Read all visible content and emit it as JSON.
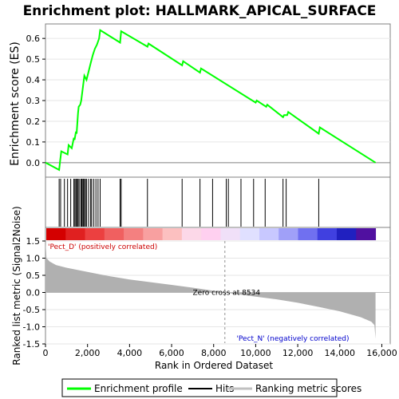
{
  "chart_data": [
    {
      "type": "line",
      "title": "Enrichment plot: HALLMARK_APICAL_SURFACE",
      "ylabel": "Enrichment score (ES)",
      "ylim": [
        -0.07,
        0.67
      ],
      "yticks": [
        "0.0",
        "0.1",
        "0.2",
        "0.3",
        "0.4",
        "0.5",
        "0.6"
      ],
      "ytick_values": [
        0.0,
        0.1,
        0.2,
        0.3,
        0.4,
        0.5,
        0.6
      ],
      "xlim": [
        0,
        16400
      ],
      "grid": true,
      "series": [
        {
          "name": "Enrichment profile",
          "color": "#00ff00",
          "x": [
            0,
            650,
            700,
            750,
            1050,
            1100,
            1250,
            1350,
            1380,
            1450,
            1480,
            1550,
            1580,
            1650,
            1700,
            1750,
            1800,
            1850,
            1950,
            2050,
            2150,
            2250,
            2350,
            2450,
            2550,
            2600,
            3550,
            3600,
            4850,
            4900,
            6500,
            6550,
            7350,
            7400,
            10000,
            10050,
            10500,
            10550,
            11300,
            11350,
            11500,
            11550,
            13000,
            13050,
            15700
          ],
          "y": [
            0.0,
            -0.035,
            0.01,
            0.055,
            0.04,
            0.085,
            0.07,
            0.12,
            0.11,
            0.15,
            0.14,
            0.24,
            0.27,
            0.28,
            0.3,
            0.34,
            0.38,
            0.42,
            0.4,
            0.44,
            0.48,
            0.52,
            0.55,
            0.57,
            0.6,
            0.64,
            0.58,
            0.635,
            0.56,
            0.575,
            0.47,
            0.49,
            0.435,
            0.455,
            0.29,
            0.3,
            0.27,
            0.28,
            0.22,
            0.23,
            0.23,
            0.245,
            0.14,
            0.17,
            0.0
          ]
        }
      ]
    },
    {
      "type": "hits",
      "series_name": "Hits",
      "hit_positions": [
        650,
        720,
        900,
        1050,
        1200,
        1350,
        1400,
        1450,
        1500,
        1550,
        1600,
        1680,
        1720,
        1750,
        1800,
        1850,
        1900,
        1950,
        2050,
        2150,
        2200,
        2300,
        2400,
        2500,
        2600,
        3550,
        3600,
        4850,
        6500,
        7350,
        7950,
        8600,
        8700,
        9300,
        9900,
        10450,
        11300,
        11450,
        13000
      ]
    },
    {
      "type": "heatmap",
      "description_labels": [
        "'Pect_D' (positively correlated)",
        "'Pect_N' (negatively correlated)"
      ],
      "colors": [
        "#d40000",
        "#e02020",
        "#ec4040",
        "#f06060",
        "#f48080",
        "#f8a0a0",
        "#fcc0c0",
        "#fcd8e8",
        "#ffd0f0",
        "#f0e0f8",
        "#e0e0ff",
        "#c8c8ff",
        "#a0a0f8",
        "#7070f0",
        "#4040e0",
        "#2020c0",
        "#5010a0"
      ]
    },
    {
      "type": "area",
      "ylabel": "Ranked list metric (Signal2Noise)",
      "xlabel": "Rank in Ordered Dataset",
      "ylim": [
        -1.5,
        1.5
      ],
      "yticks": [
        "-1.5",
        "-1.0",
        "-0.5",
        "0.0",
        "0.5",
        "1.0",
        "1.5"
      ],
      "ytick_values": [
        -1.5,
        -1.0,
        -0.5,
        0.0,
        0.5,
        1.0,
        1.5
      ],
      "xlim": [
        0,
        16400
      ],
      "xticks": [
        "0",
        "2,000",
        "4,000",
        "6,000",
        "8,000",
        "10,000",
        "12,000",
        "14,000",
        "16,000"
      ],
      "xtick_values": [
        0,
        2000,
        4000,
        6000,
        8000,
        10000,
        12000,
        14000,
        16000
      ],
      "zero_cross": 8534,
      "zero_cross_label": "Zero cross at 8534",
      "x": [
        0,
        50,
        200,
        500,
        1000,
        2000,
        3000,
        4000,
        5000,
        6000,
        7000,
        8000,
        8534,
        9000,
        10000,
        11000,
        12000,
        13000,
        14000,
        15000,
        15500,
        15650,
        15700
      ],
      "y": [
        1.5,
        1.0,
        0.9,
        0.8,
        0.72,
        0.6,
        0.48,
        0.38,
        0.3,
        0.22,
        0.14,
        0.05,
        0.0,
        -0.04,
        -0.12,
        -0.2,
        -0.3,
        -0.42,
        -0.55,
        -0.72,
        -0.85,
        -0.95,
        -1.35
      ]
    }
  ],
  "legend": {
    "items": [
      {
        "label": "Enrichment profile",
        "color": "#00ff00"
      },
      {
        "label": "Hits",
        "color": "#000000"
      },
      {
        "label": "Ranking metric scores",
        "color": "#c0c0c0"
      }
    ]
  }
}
